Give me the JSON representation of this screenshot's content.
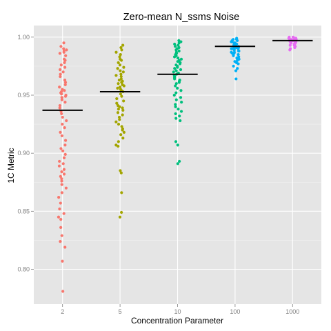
{
  "chart_data": {
    "type": "scatter",
    "title": "Zero-mean N_ssms Noise",
    "xlabel": "Concentration Parameter",
    "ylabel": "1C Metric",
    "categories": [
      "2",
      "5",
      "10",
      "100",
      "1000"
    ],
    "yticks": [
      "0.80",
      "0.85",
      "0.90",
      "0.95",
      "1.00"
    ],
    "ylim": [
      0.77,
      1.01
    ],
    "grid": true,
    "legend": "none",
    "colors": [
      "#F8766D",
      "#A3A500",
      "#00BF7D",
      "#00B0F6",
      "#E76BF3"
    ],
    "background": "#E5E5E5",
    "mean_line_color": "#000000",
    "series": [
      {
        "category": "2",
        "mean": 0.937,
        "values": [
          0.995,
          0.992,
          0.99,
          0.989,
          0.988,
          0.987,
          0.986,
          0.984,
          0.981,
          0.98,
          0.978,
          0.976,
          0.974,
          0.972,
          0.97,
          0.968,
          0.966,
          0.963,
          0.961,
          0.959,
          0.957,
          0.955,
          0.954,
          0.953,
          0.952,
          0.951,
          0.95,
          0.949,
          0.948,
          0.946,
          0.944,
          0.941,
          0.939,
          0.936,
          0.934,
          0.931,
          0.928,
          0.925,
          0.922,
          0.918,
          0.915,
          0.911,
          0.907,
          0.904,
          0.902,
          0.899,
          0.896,
          0.893,
          0.891,
          0.889,
          0.886,
          0.884,
          0.882,
          0.88,
          0.878,
          0.876,
          0.873,
          0.87,
          0.866,
          0.862,
          0.857,
          0.852,
          0.848,
          0.845,
          0.843,
          0.836,
          0.829,
          0.824,
          0.819,
          0.807,
          0.781
        ]
      },
      {
        "category": "5",
        "mean": 0.953,
        "values": [
          0.993,
          0.991,
          0.989,
          0.987,
          0.985,
          0.983,
          0.981,
          0.98,
          0.978,
          0.976,
          0.974,
          0.973,
          0.971,
          0.97,
          0.968,
          0.967,
          0.966,
          0.964,
          0.963,
          0.962,
          0.961,
          0.96,
          0.959,
          0.958,
          0.957,
          0.956,
          0.955,
          0.954,
          0.953,
          0.951,
          0.949,
          0.947,
          0.945,
          0.943,
          0.941,
          0.94,
          0.939,
          0.938,
          0.937,
          0.935,
          0.933,
          0.931,
          0.929,
          0.927,
          0.925,
          0.923,
          0.921,
          0.92,
          0.918,
          0.916,
          0.913,
          0.91,
          0.907,
          0.906,
          0.885,
          0.883,
          0.866,
          0.849,
          0.845
        ]
      },
      {
        "category": "10",
        "mean": 0.968,
        "values": [
          0.997,
          0.996,
          0.995,
          0.994,
          0.993,
          0.992,
          0.991,
          0.99,
          0.989,
          0.988,
          0.987,
          0.986,
          0.985,
          0.984,
          0.983,
          0.982,
          0.981,
          0.98,
          0.979,
          0.978,
          0.977,
          0.976,
          0.975,
          0.974,
          0.973,
          0.972,
          0.971,
          0.97,
          0.969,
          0.968,
          0.967,
          0.966,
          0.965,
          0.964,
          0.963,
          0.962,
          0.961,
          0.96,
          0.958,
          0.956,
          0.954,
          0.952,
          0.95,
          0.948,
          0.946,
          0.944,
          0.942,
          0.94,
          0.938,
          0.936,
          0.934,
          0.932,
          0.93,
          0.928,
          0.91,
          0.907,
          0.893,
          0.891
        ]
      },
      {
        "category": "100",
        "mean": 0.992,
        "values": [
          0.999,
          0.998,
          0.998,
          0.997,
          0.997,
          0.996,
          0.996,
          0.995,
          0.995,
          0.995,
          0.994,
          0.994,
          0.994,
          0.993,
          0.993,
          0.993,
          0.992,
          0.992,
          0.992,
          0.991,
          0.991,
          0.991,
          0.99,
          0.99,
          0.99,
          0.989,
          0.989,
          0.988,
          0.988,
          0.987,
          0.987,
          0.986,
          0.986,
          0.985,
          0.984,
          0.983,
          0.982,
          0.981,
          0.98,
          0.979,
          0.978,
          0.977,
          0.975,
          0.973,
          0.971,
          0.964
        ]
      },
      {
        "category": "1000",
        "mean": 0.997,
        "values": [
          1.0,
          1.0,
          0.999,
          0.999,
          0.999,
          0.999,
          0.998,
          0.998,
          0.998,
          0.998,
          0.997,
          0.997,
          0.997,
          0.997,
          0.996,
          0.996,
          0.996,
          0.995,
          0.995,
          0.995,
          0.994,
          0.994,
          0.993,
          0.993,
          0.992,
          0.992,
          0.991,
          0.99,
          0.989
        ]
      }
    ]
  }
}
